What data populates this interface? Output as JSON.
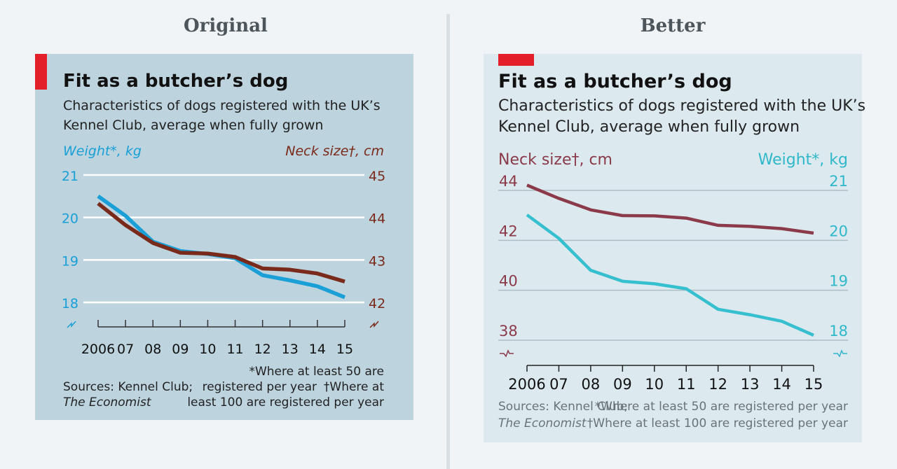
{
  "headings": {
    "left": "Original",
    "right": "Better"
  },
  "colors": {
    "accent_red": "#e3202a",
    "original_weight": "#1a9fd6",
    "original_neck": "#7a2a1a",
    "better_weight": "#36bfcf",
    "better_neck": "#8b3a4a"
  },
  "chart_data": [
    {
      "panel": "Original",
      "type": "line",
      "title": "Fit as a butcher’s dog",
      "subtitle": [
        "Characteristics of dogs registered with the UK’s",
        "Kennel Club, average when fully grown"
      ],
      "categories": [
        "2006",
        "07",
        "08",
        "09",
        "10",
        "11",
        "12",
        "13",
        "14",
        "15"
      ],
      "left_axis": {
        "label": "Weight*, kg",
        "range": [
          18,
          21
        ],
        "ticks": [
          "21",
          "20",
          "19",
          "18"
        ],
        "axis_break": true
      },
      "right_axis": {
        "label": "Neck size†, cm",
        "range": [
          42,
          45
        ],
        "ticks": [
          "45",
          "44",
          "43",
          "42"
        ],
        "axis_break": true
      },
      "series": [
        {
          "name": "Weight*, kg",
          "axis": "left",
          "color": "#1a9fd6",
          "values": [
            20.5,
            20.04,
            19.43,
            19.21,
            19.14,
            19.04,
            18.64,
            18.52,
            18.38,
            18.12
          ]
        },
        {
          "name": "Neck size†, cm",
          "axis": "right",
          "color": "#7a2a1a",
          "values": [
            44.33,
            43.82,
            43.4,
            43.17,
            43.15,
            43.07,
            42.8,
            42.77,
            42.68,
            42.49
          ]
        }
      ],
      "grid": true,
      "footnotes": {
        "note1": "*Where at least 50 are",
        "note2": "registered per year",
        "note2b": "†Where at",
        "note3": "least 100 are registered per year"
      },
      "sources": {
        "line1": "Sources: Kennel Club;",
        "line2": "The Economist"
      }
    },
    {
      "panel": "Better",
      "type": "line",
      "title": "Fit as a butcher’s dog",
      "subtitle": [
        "Characteristics of dogs registered with the UK’s",
        "Kennel Club, average when fully grown"
      ],
      "categories": [
        "2006",
        "07",
        "08",
        "09",
        "10",
        "11",
        "12",
        "13",
        "14",
        "15"
      ],
      "left_axis": {
        "label": "Neck size†, cm",
        "range": [
          38,
          44
        ],
        "ticks": [
          "44",
          "42",
          "40",
          "38"
        ],
        "axis_break": true
      },
      "right_axis": {
        "label": "Weight*, kg",
        "range": [
          18,
          21
        ],
        "ticks": [
          "21",
          "20",
          "19",
          "18"
        ],
        "axis_break": true
      },
      "series": [
        {
          "name": "Neck size†, cm",
          "axis": "left",
          "color": "#8b3a4a",
          "values": [
            44.21,
            43.68,
            43.22,
            42.99,
            42.98,
            42.89,
            42.6,
            42.56,
            42.47,
            42.29
          ]
        },
        {
          "name": "Weight*, kg",
          "axis": "right",
          "color": "#36bfcf",
          "values": [
            20.51,
            20.04,
            19.4,
            19.18,
            19.13,
            19.03,
            18.62,
            18.51,
            18.38,
            18.1
          ]
        }
      ],
      "grid": true,
      "footnotes": {
        "note1": "*Where at least 50 are registered per year",
        "note2": "†Where at least 100 are registered per year"
      },
      "sources": {
        "line1": "Sources: Kennel Club;",
        "line2": "The Economist"
      }
    }
  ]
}
